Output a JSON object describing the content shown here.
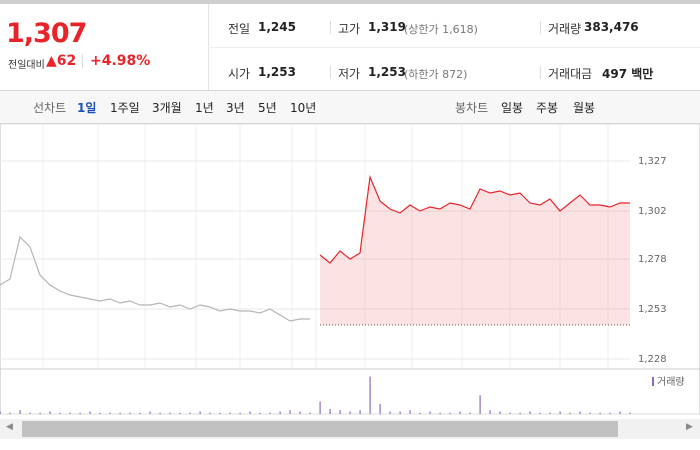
{
  "header": {
    "price": "1,307",
    "change_label": "전일대비",
    "change": "62",
    "change_pct": "+4.98%",
    "stats": [
      [
        {
          "label": "전일",
          "value": "1,245"
        },
        {
          "label": "고가",
          "value": "1,319",
          "note": "(상한가 1,618)"
        },
        {
          "label": "거래량",
          "value": "383,476"
        }
      ],
      [
        {
          "label": "시가",
          "value": "1,253"
        },
        {
          "label": "저가",
          "value": "1,253",
          "note": "(하한가 872)"
        },
        {
          "label": "거래대금",
          "value": "497 백만"
        }
      ]
    ]
  },
  "tabs": {
    "line_label": "선차트",
    "line_periods": [
      "1일",
      "1주일",
      "3개월",
      "1년",
      "3년",
      "5년",
      "10년"
    ],
    "candle_label": "봉차트",
    "candle_periods": [
      "일봉",
      "주봉",
      "월봉"
    ]
  },
  "chart_data": {
    "type": "line",
    "ylim": [
      1223,
      1343
    ],
    "yticks": [
      {
        "value": 1327,
        "label": "1,327"
      },
      {
        "value": 1302,
        "label": "1,302"
      },
      {
        "value": 1278,
        "label": "1,278"
      },
      {
        "value": 1253,
        "label": "1,253"
      },
      {
        "value": 1228,
        "label": "1,228"
      }
    ],
    "baseline": 1245,
    "series": [
      {
        "color": "#b5b5b5",
        "values": [
          1265,
          1268,
          1289,
          1284,
          1270,
          1265,
          1262,
          1260,
          1259,
          1258,
          1257,
          1258,
          1256,
          1257,
          1255,
          1255,
          1256,
          1254,
          1255,
          1253,
          1255,
          1254,
          1252,
          1253,
          1252,
          1252,
          1251,
          1253,
          1250,
          1247,
          1248,
          1248,
          null,
          null,
          null,
          null,
          null,
          null,
          null,
          null,
          null,
          null,
          null,
          null,
          null,
          null,
          null,
          null,
          null,
          null,
          null,
          null,
          null,
          null,
          null,
          null,
          null,
          null,
          null,
          null,
          null,
          null,
          null,
          null
        ]
      },
      {
        "color": "#e8242a",
        "values": [
          null,
          null,
          null,
          null,
          null,
          null,
          null,
          null,
          null,
          null,
          null,
          null,
          null,
          null,
          null,
          null,
          null,
          null,
          null,
          null,
          null,
          null,
          null,
          null,
          null,
          null,
          null,
          null,
          null,
          null,
          null,
          null,
          1280,
          1276,
          1282,
          1278,
          1281,
          1319,
          1307,
          1303,
          1301,
          1305,
          1302,
          1304,
          1303,
          1306,
          1305,
          1303,
          1313,
          1311,
          1312,
          1310,
          1311,
          1306,
          1305,
          1308,
          1302,
          1306,
          1310,
          1305,
          1305,
          1304,
          1306,
          1306
        ]
      }
    ],
    "volume": {
      "name": "거래량",
      "color": "#8c6bb8",
      "values": [
        2,
        1,
        3,
        1,
        1,
        2,
        1,
        1,
        1,
        2,
        1,
        1,
        1,
        1,
        1,
        2,
        1,
        1,
        1,
        1,
        2,
        1,
        1,
        1,
        1,
        2,
        1,
        1,
        2,
        3,
        2,
        1,
        10,
        4,
        3,
        2,
        3,
        30,
        8,
        2,
        2,
        3,
        1,
        2,
        1,
        1,
        2,
        1,
        15,
        3,
        2,
        1,
        1,
        2,
        1,
        1,
        2,
        1,
        2,
        1,
        1,
        1,
        2,
        1
      ]
    }
  }
}
